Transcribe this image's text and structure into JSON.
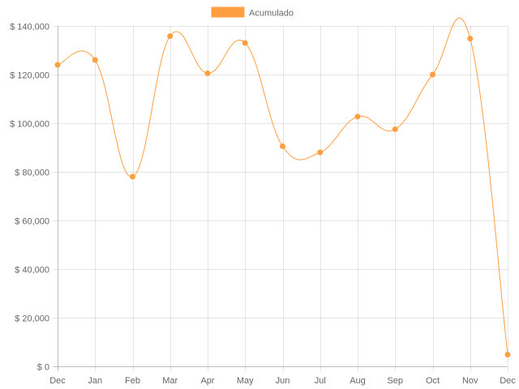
{
  "chart_data": {
    "type": "line",
    "title": "",
    "xlabel": "",
    "ylabel": "",
    "categories": [
      "Dec",
      "Jan",
      "Feb",
      "Mar",
      "Apr",
      "May",
      "Jun",
      "Jul",
      "Aug",
      "Sep",
      "Oct",
      "Nov",
      "Dec"
    ],
    "series": [
      {
        "name": "Acumulado",
        "color": "#ff9f40",
        "values": [
          124000,
          126000,
          78000,
          135800,
          120500,
          133000,
          90500,
          88000,
          102700,
          97500,
          120000,
          134800,
          4800
        ]
      }
    ],
    "ylim": [
      0,
      140000
    ],
    "yticks": [
      0,
      20000,
      40000,
      60000,
      80000,
      100000,
      120000,
      140000
    ],
    "ytick_labels": [
      "$ 0",
      "$ 20,000",
      "$ 40,000",
      "$ 60,000",
      "$ 80,000",
      "$ 100,000",
      "$ 120,000",
      "$ 140,000"
    ],
    "grid": true,
    "legend_position": "top",
    "smoothed": true
  }
}
